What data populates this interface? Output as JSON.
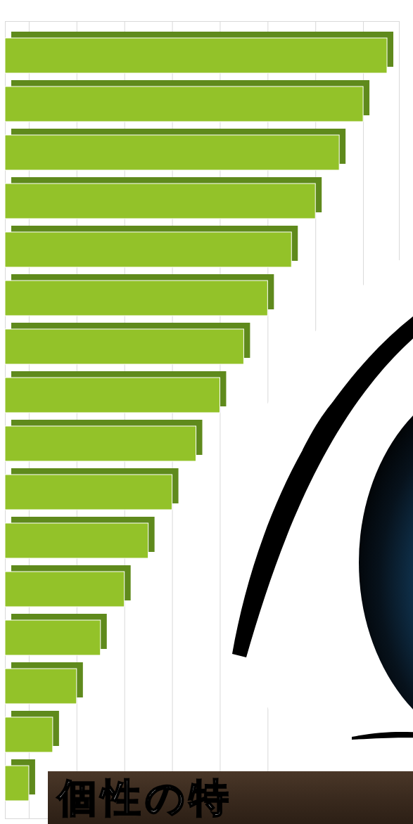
{
  "chart_data": {
    "type": "bar",
    "orientation": "horizontal",
    "title": "個性の特",
    "categories": [
      null,
      null,
      null,
      null,
      null,
      null,
      null,
      null,
      null,
      null,
      null,
      null,
      null,
      null,
      null,
      null
    ],
    "values": [
      16,
      15,
      14,
      13,
      12,
      11,
      10,
      9,
      8,
      7,
      6,
      5,
      4,
      3,
      2,
      1
    ],
    "color": "#93c229",
    "xlim": [
      0,
      16.5
    ],
    "xticks": [
      1,
      3,
      5,
      7,
      9,
      11,
      13,
      15
    ],
    "grid": true,
    "tick_labels": false
  }
}
